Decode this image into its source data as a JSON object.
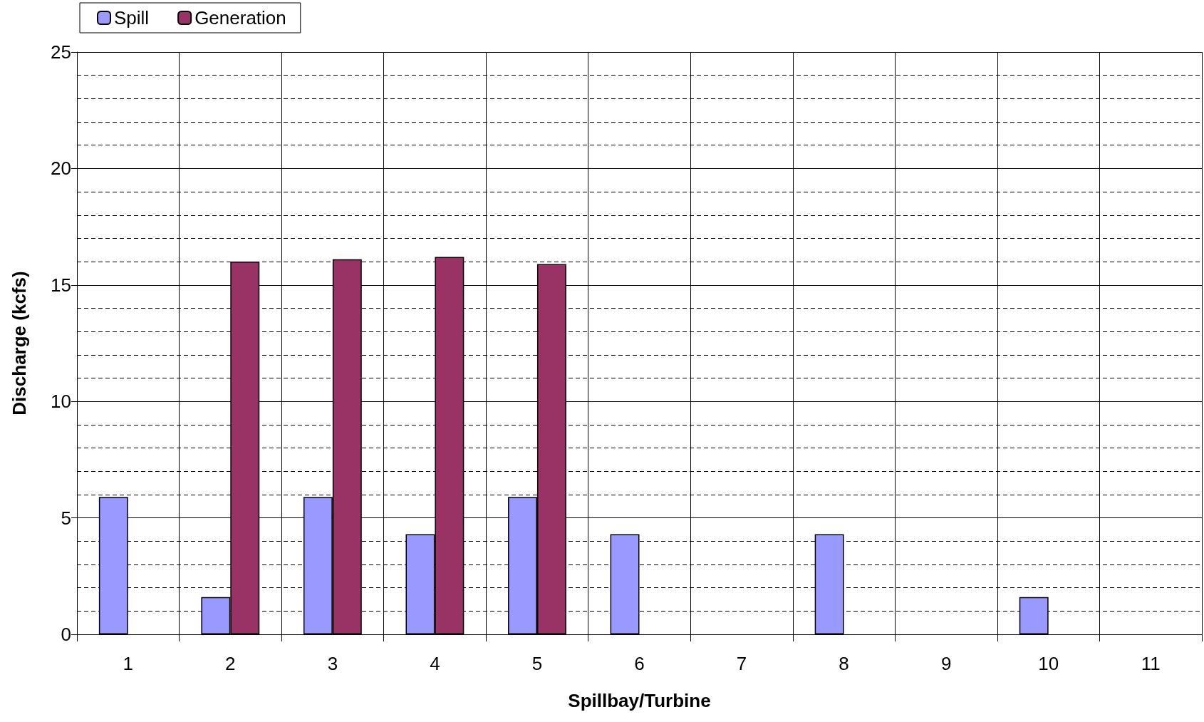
{
  "chart_data": {
    "type": "bar",
    "xlabel": "Spillbay/Turbine",
    "ylabel": "Discharge (kcfs)",
    "categories": [
      "1",
      "2",
      "3",
      "4",
      "5",
      "6",
      "7",
      "8",
      "9",
      "10",
      "11"
    ],
    "series": [
      {
        "name": "Spill",
        "color": "#9999ff",
        "values": [
          5.9,
          1.6,
          5.9,
          4.3,
          5.9,
          4.3,
          null,
          4.3,
          null,
          1.6,
          null
        ]
      },
      {
        "name": "Generation",
        "color": "#993366",
        "values": [
          null,
          16,
          16.1,
          16.2,
          15.9,
          null,
          null,
          null,
          null,
          null,
          null
        ]
      }
    ],
    "ylim": [
      0,
      25
    ],
    "yticks": [
      0,
      5,
      10,
      15,
      20,
      25
    ],
    "grid": true,
    "legend": "top left"
  }
}
